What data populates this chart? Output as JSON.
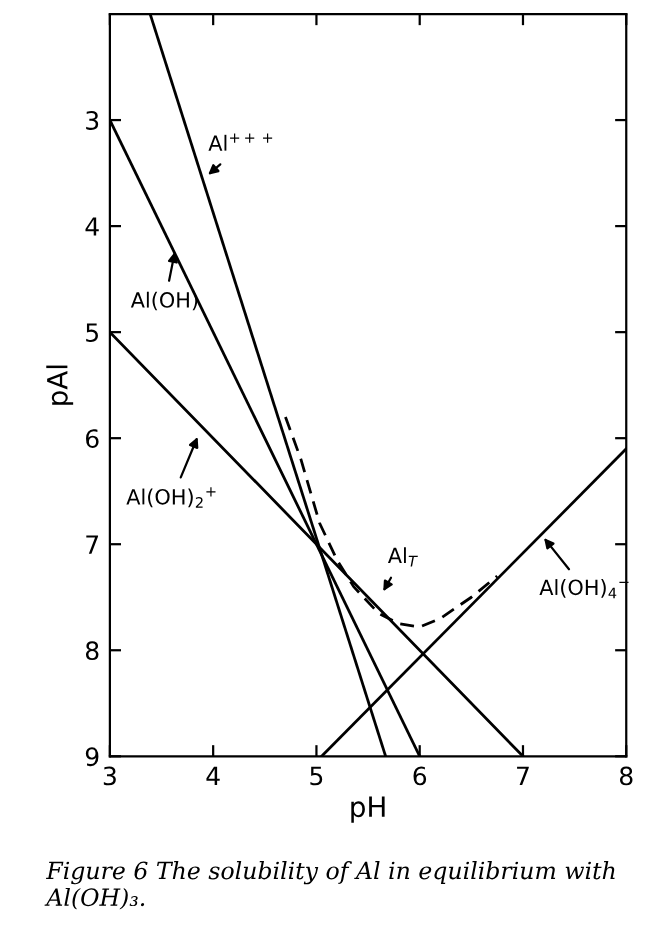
{
  "chart_data": {
    "type": "line",
    "xlabel": "pH",
    "ylabel": "pAl",
    "xlim": [
      3,
      8
    ],
    "ylim": [
      9,
      2
    ],
    "xticks": [
      3,
      4,
      5,
      6,
      7,
      8
    ],
    "yticks": [
      3,
      4,
      5,
      6,
      7,
      8,
      9
    ],
    "grid": false,
    "legend": false,
    "marker": "none",
    "series": [
      {
        "color": "#000000",
        "line_style": "solid",
        "x": [
          3.39,
          5.67
        ],
        "values": [
          2,
          9
        ]
      },
      {
        "color": "#000000",
        "line_style": "solid",
        "x": [
          3,
          6
        ],
        "values": [
          3,
          9
        ]
      },
      {
        "color": "#000000",
        "line_style": "solid",
        "x": [
          3,
          7
        ],
        "values": [
          5,
          9
        ]
      },
      {
        "color": "#000000",
        "line_style": "solid",
        "x": [
          5.05,
          8
        ],
        "values": [
          9,
          6.1
        ]
      },
      {
        "color": "#000000",
        "line_style": "dashed",
        "x": [
          4.7,
          4.85,
          5.03,
          5.2,
          5.36,
          5.6,
          5.8,
          6.0,
          6.2,
          6.5,
          6.75
        ],
        "values": [
          5.8,
          6.2,
          6.8,
          7.15,
          7.4,
          7.65,
          7.75,
          7.78,
          7.7,
          7.5,
          7.3
        ]
      }
    ],
    "annotations": [
      {
        "text": "Al$^{+++}$",
        "x": 3.91,
        "y": 3.55
      },
      {
        "text": "Al(OH)",
        "x": 3.64,
        "y": 4.19
      },
      {
        "text": "Al(OH)$_{2}$$^{+}$",
        "x": 3.87,
        "y": 5.94
      },
      {
        "text": "Al$_{T}$",
        "x": 5.62,
        "y": 7.49
      },
      {
        "text": "Al(OH)$_{4}$$^{−}$",
        "x": 7.17,
        "y": 6.9
      },
      "Figure 6 The solubility of Al in equilibrium with Al(OH)₃."
    ]
  }
}
